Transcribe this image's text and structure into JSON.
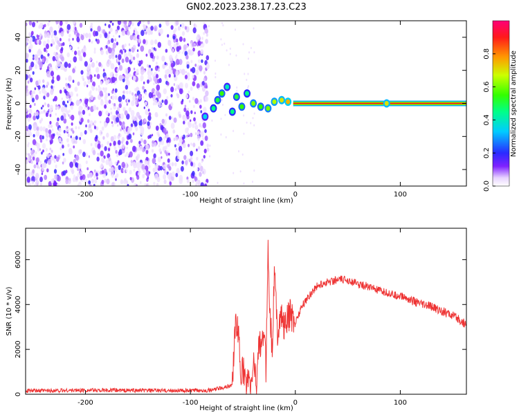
{
  "title": "GN02.2023.238.17.23.C23",
  "colors": {
    "snr_line": "#ee3333",
    "background": "#ffffff",
    "axis": "#000000"
  },
  "chart_data": [
    {
      "type": "heatmap",
      "xlabel": "Height of straight line (km)",
      "ylabel": "Frequency (Hz)",
      "xlim": [
        -257,
        163
      ],
      "ylim": [
        -50,
        50
      ],
      "x_ticks": [
        -200,
        -100,
        0,
        100
      ],
      "y_ticks": [
        -40,
        -20,
        0,
        20,
        40
      ],
      "colorbar": {
        "label": "Normalized spectral amplitude",
        "range": [
          0,
          1
        ],
        "ticks": [
          0.0,
          0.2,
          0.4,
          0.6,
          0.8
        ],
        "colormap": "rainbow"
      },
      "features": {
        "noise_region_x": [
          -257,
          -83
        ],
        "tone_frequency_hz": 0,
        "tone_start_x": -2,
        "transition_blobs": [
          {
            "x": -86,
            "y": -8,
            "v": 0.35
          },
          {
            "x": -78,
            "y": -3,
            "v": 0.45
          },
          {
            "x": -74,
            "y": 2,
            "v": 0.5
          },
          {
            "x": -70,
            "y": 6,
            "v": 0.55
          },
          {
            "x": -65,
            "y": 10,
            "v": 0.4
          },
          {
            "x": -60,
            "y": -5,
            "v": 0.45
          },
          {
            "x": -56,
            "y": 4,
            "v": 0.5
          },
          {
            "x": -51,
            "y": -2,
            "v": 0.55
          },
          {
            "x": -46,
            "y": 6,
            "v": 0.45
          },
          {
            "x": -40,
            "y": 0,
            "v": 0.6
          },
          {
            "x": -33,
            "y": -2,
            "v": 0.55
          },
          {
            "x": -26,
            "y": -3,
            "v": 0.6
          },
          {
            "x": -20,
            "y": 1,
            "v": 0.65
          },
          {
            "x": -13,
            "y": 2,
            "v": 0.7
          },
          {
            "x": -7,
            "y": 1,
            "v": 0.75
          },
          {
            "x": 87,
            "y": 0,
            "v": 0.7
          }
        ]
      }
    },
    {
      "type": "line",
      "xlabel": "Height of straight line (km)",
      "ylabel": "SNR (10 * v/v)",
      "xlim": [
        -257,
        163
      ],
      "ylim": [
        0,
        7400
      ],
      "x_ticks": [
        -200,
        -100,
        0,
        100
      ],
      "y_ticks": [
        0,
        2000,
        4000,
        6000
      ],
      "series": [
        {
          "color": "#ee3333",
          "x": [
            -257,
            -200,
            -150,
            -100,
            -80,
            -60,
            -58,
            -55,
            -52,
            -50,
            -47,
            -45,
            -42,
            -40,
            -37,
            -35,
            -32,
            -30,
            -28,
            -26,
            -24,
            -22,
            -20,
            -17,
            -14,
            -10,
            -5,
            0,
            5,
            10,
            20,
            30,
            40,
            50,
            60,
            70,
            80,
            90,
            95,
            100,
            110,
            120,
            130,
            140,
            150,
            163
          ],
          "values": [
            150,
            180,
            170,
            160,
            180,
            400,
            2700,
            3200,
            900,
            1200,
            300,
            600,
            250,
            1600,
            400,
            2400,
            1800,
            3000,
            1200,
            6500,
            3500,
            2000,
            5500,
            2800,
            3500,
            3000,
            3600,
            3200,
            3800,
            4200,
            4800,
            5000,
            5100,
            5100,
            4900,
            4800,
            4600,
            4500,
            4400,
            4400,
            4200,
            4000,
            3900,
            3700,
            3500,
            3100
          ]
        }
      ]
    }
  ]
}
